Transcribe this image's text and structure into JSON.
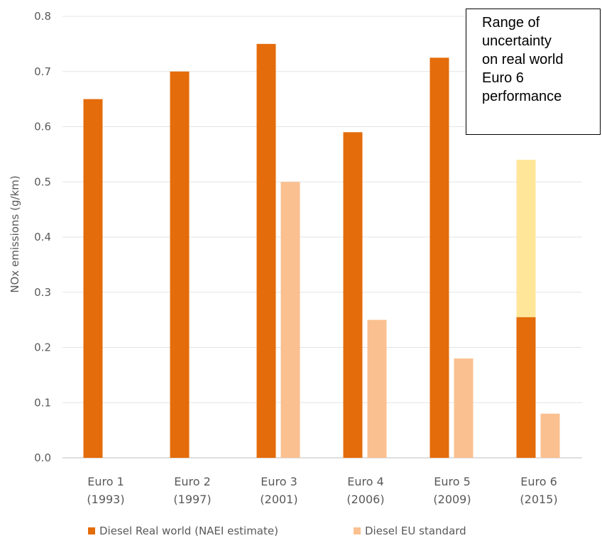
{
  "chart_data": {
    "type": "bar",
    "title": "",
    "ylabel": "NOx emissions (g/km)",
    "xlabel": "",
    "ylim": [
      0,
      0.8
    ],
    "yticks": [
      "0.0",
      "0.1",
      "0.2",
      "0.3",
      "0.4",
      "0.5",
      "0.6",
      "0.7",
      "0.8"
    ],
    "grid": true,
    "categories": [
      {
        "name": "Euro 1",
        "year": "(1993)"
      },
      {
        "name": "Euro 2",
        "year": "(1997)"
      },
      {
        "name": "Euro 3",
        "year": "(2001)"
      },
      {
        "name": "Euro 4",
        "year": "(2006)"
      },
      {
        "name": "Euro 5",
        "year": "(2009)"
      },
      {
        "name": "Euro 6",
        "year": "(2015)"
      }
    ],
    "series": [
      {
        "name": "Diesel Real world (NAEI estimate)",
        "color": "#E46C0A",
        "values": [
          0.65,
          0.7,
          0.75,
          0.59,
          0.725,
          0.255
        ]
      },
      {
        "name": "Diesel EU standard",
        "color": "#FAC090",
        "values": [
          null,
          null,
          0.5,
          0.25,
          0.18,
          0.08
        ]
      }
    ],
    "uncertainty_range": {
      "category_index": 5,
      "low": 0.255,
      "high": 0.54,
      "color": "#FFE699"
    },
    "legend_position": "bottom",
    "annotation": [
      "Range of",
      "uncertainty",
      "on real world",
      "Euro 6",
      "performance"
    ]
  }
}
